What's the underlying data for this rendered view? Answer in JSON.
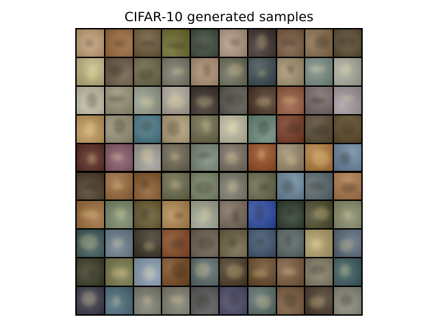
{
  "figure": {
    "title": "CIFAR-10 generated samples",
    "grid": {
      "rows": 10,
      "cols": 10
    },
    "colors": {
      "background": "#ffffff",
      "grid_lines": "#000000"
    },
    "tiles": [
      [
        "#c9a47a",
        "#a06a3c",
        "#6e5a3a",
        "#6b6a2a",
        "#3e4a3c",
        "#b59a84",
        "#3b2e2a",
        "#7a5a3e",
        "#8a6e4a",
        "#5e4e32"
      ],
      [
        "#c2b882",
        "#6e5a44",
        "#6e6a48",
        "#7a7a6a",
        "#b49476",
        "#6a6c58",
        "#3a4a4e",
        "#a89470",
        "#7a8e86",
        "#aeb0a0"
      ],
      [
        "#cbc4ae",
        "#9a9478",
        "#9aa08e",
        "#b0aa9a",
        "#3a3028",
        "#5a5a50",
        "#4a3422",
        "#9a5a3e",
        "#7a6a6a",
        "#a49aa0"
      ],
      [
        "#c29a5a",
        "#9a9478",
        "#4a7a8a",
        "#b4a278",
        "#6e6a4a",
        "#c4c0a4",
        "#6a8a7a",
        "#7a3a22",
        "#5a4a32",
        "#5e4a26"
      ],
      [
        "#5a2a1e",
        "#8a5a6a",
        "#a4a29a",
        "#6e6650",
        "#7a8a7a",
        "#7a7060",
        "#9a4e22",
        "#9a8a6a",
        "#b47a3a",
        "#6a86a2"
      ],
      [
        "#4a3a24",
        "#9a6a3a",
        "#8a5a2a",
        "#6a6a4a",
        "#7e8a6a",
        "#7a7a6a",
        "#6a6a4a",
        "#6a8aa0",
        "#5a6a6e",
        "#b07a4a"
      ],
      [
        "#a06e3a",
        "#7a8a6a",
        "#6a5a2e",
        "#b4884e",
        "#a4aa94",
        "#7a6a5a",
        "#2a4aa8",
        "#2a3a2a",
        "#4a4a2a",
        "#8a8e6a"
      ],
      [
        "#3e5a5a",
        "#6a7e8e",
        "#3a3424",
        "#8a4a22",
        "#6e6050",
        "#6e6244",
        "#3e5470",
        "#5a6a6a",
        "#b4a26a",
        "#5a6a7a"
      ],
      [
        "#3a3a24",
        "#7a7a4a",
        "#8aa0b6",
        "#7a4a1e",
        "#5a6a6a",
        "#4a3a24",
        "#6a4a26",
        "#7a5a3a",
        "#8a806a",
        "#3a5a5e"
      ],
      [
        "#3a3a4a",
        "#4a6a7a",
        "#7e8070",
        "#7e7e6e",
        "#5a5a5a",
        "#4a4a6a",
        "#5a6e6a",
        "#7a5a3a",
        "#4a3a2a",
        "#8a8a7a"
      ]
    ]
  }
}
